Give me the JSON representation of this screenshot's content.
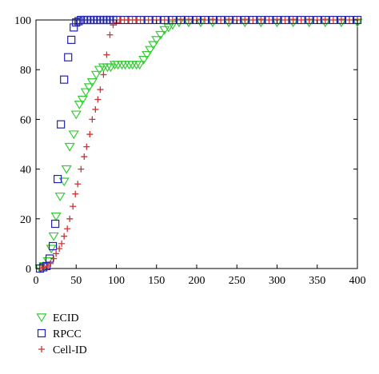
{
  "chart_data": {
    "type": "scatter",
    "title": "",
    "xlabel": "",
    "ylabel": "",
    "xlim": [
      0,
      400
    ],
    "ylim": [
      0,
      100
    ],
    "x_ticks": [
      0,
      50,
      100,
      150,
      200,
      250,
      300,
      350,
      400
    ],
    "y_ticks": [
      0,
      20,
      40,
      60,
      80,
      100
    ],
    "x_tick_labels": [
      "0",
      "50",
      "100",
      "150",
      "200",
      "250",
      "300",
      "350",
      "400"
    ],
    "y_tick_labels": [
      "0",
      "20",
      "40",
      "60",
      "80",
      "100"
    ],
    "grid": false,
    "legend_position": "below-left",
    "series": [
      {
        "name": "ECID",
        "marker": "triangle-down",
        "color": "#33cc33",
        "points": [
          [
            5,
            0
          ],
          [
            10,
            1
          ],
          [
            15,
            3
          ],
          [
            19,
            8
          ],
          [
            22,
            13
          ],
          [
            25,
            21
          ],
          [
            30,
            29
          ],
          [
            35,
            35
          ],
          [
            38,
            40
          ],
          [
            42,
            49
          ],
          [
            47,
            54
          ],
          [
            50,
            62
          ],
          [
            54,
            66
          ],
          [
            58,
            68
          ],
          [
            62,
            71
          ],
          [
            66,
            73
          ],
          [
            70,
            75
          ],
          [
            75,
            78
          ],
          [
            79,
            80
          ],
          [
            84,
            81
          ],
          [
            89,
            81
          ],
          [
            93,
            81
          ],
          [
            98,
            82
          ],
          [
            102,
            82
          ],
          [
            107,
            82
          ],
          [
            111,
            82
          ],
          [
            116,
            82
          ],
          [
            120,
            82
          ],
          [
            125,
            82
          ],
          [
            129,
            82
          ],
          [
            134,
            84
          ],
          [
            138,
            86
          ],
          [
            142,
            88
          ],
          [
            146,
            90
          ],
          [
            150,
            92
          ],
          [
            155,
            94
          ],
          [
            160,
            96
          ],
          [
            165,
            97
          ],
          [
            170,
            98
          ],
          [
            178,
            99
          ],
          [
            190,
            99
          ],
          [
            205,
            99
          ],
          [
            220,
            99
          ],
          [
            240,
            99
          ],
          [
            260,
            99
          ],
          [
            280,
            99
          ],
          [
            300,
            99
          ],
          [
            320,
            99
          ],
          [
            340,
            99
          ],
          [
            360,
            99
          ],
          [
            380,
            99
          ],
          [
            400,
            99
          ]
        ]
      },
      {
        "name": "RPCC",
        "marker": "square",
        "color": "#2222aa",
        "points": [
          [
            5,
            0
          ],
          [
            9,
            0.5
          ],
          [
            13,
            1
          ],
          [
            17,
            4
          ],
          [
            21,
            9
          ],
          [
            24,
            18
          ],
          [
            27,
            36
          ],
          [
            31,
            58
          ],
          [
            35,
            76
          ],
          [
            40,
            85
          ],
          [
            44,
            92
          ],
          [
            47,
            97
          ],
          [
            50,
            99
          ],
          [
            53,
            99.5
          ],
          [
            56,
            100
          ],
          [
            60,
            100
          ],
          [
            64,
            100
          ],
          [
            68,
            100
          ],
          [
            72,
            100
          ],
          [
            76,
            100
          ],
          [
            80,
            100
          ],
          [
            84,
            100
          ],
          [
            88,
            100
          ],
          [
            92,
            100
          ],
          [
            96,
            100
          ],
          [
            100,
            100
          ],
          [
            110,
            100
          ],
          [
            120,
            100
          ],
          [
            130,
            100
          ],
          [
            140,
            100
          ],
          [
            150,
            100
          ],
          [
            160,
            100
          ],
          [
            170,
            100
          ],
          [
            180,
            100
          ],
          [
            190,
            100
          ],
          [
            200,
            100
          ],
          [
            210,
            100
          ],
          [
            220,
            100
          ],
          [
            230,
            100
          ],
          [
            240,
            100
          ],
          [
            250,
            100
          ],
          [
            260,
            100
          ],
          [
            270,
            100
          ],
          [
            280,
            100
          ],
          [
            290,
            100
          ],
          [
            300,
            100
          ],
          [
            310,
            100
          ],
          [
            320,
            100
          ],
          [
            330,
            100
          ],
          [
            340,
            100
          ],
          [
            350,
            100
          ],
          [
            360,
            100
          ],
          [
            370,
            100
          ],
          [
            380,
            100
          ],
          [
            390,
            100
          ],
          [
            400,
            100
          ]
        ]
      },
      {
        "name": "Cell-ID",
        "marker": "plus",
        "color": "#cc3333",
        "points": [
          [
            5,
            0
          ],
          [
            10,
            0.5
          ],
          [
            15,
            1
          ],
          [
            18,
            2
          ],
          [
            22,
            4
          ],
          [
            25,
            6
          ],
          [
            29,
            8
          ],
          [
            32,
            10
          ],
          [
            35,
            13
          ],
          [
            39,
            16
          ],
          [
            42,
            20
          ],
          [
            46,
            25
          ],
          [
            49,
            30
          ],
          [
            52,
            34
          ],
          [
            56,
            40
          ],
          [
            60,
            45
          ],
          [
            63,
            49
          ],
          [
            67,
            54
          ],
          [
            70,
            60
          ],
          [
            74,
            64
          ],
          [
            77,
            68
          ],
          [
            80,
            72
          ],
          [
            84,
            78
          ],
          [
            88,
            86
          ],
          [
            92,
            94
          ],
          [
            96,
            98
          ],
          [
            100,
            99
          ],
          [
            105,
            100
          ],
          [
            110,
            100
          ],
          [
            115,
            100
          ],
          [
            120,
            100
          ],
          [
            125,
            100
          ],
          [
            130,
            100
          ],
          [
            140,
            100
          ],
          [
            150,
            100
          ],
          [
            160,
            100
          ],
          [
            170,
            100
          ],
          [
            180,
            100
          ],
          [
            190,
            100
          ],
          [
            200,
            100
          ],
          [
            210,
            100
          ],
          [
            220,
            100
          ],
          [
            230,
            100
          ],
          [
            240,
            100
          ],
          [
            250,
            100
          ],
          [
            260,
            100
          ],
          [
            270,
            100
          ],
          [
            280,
            100
          ],
          [
            290,
            100
          ],
          [
            300,
            100
          ],
          [
            310,
            100
          ],
          [
            320,
            100
          ],
          [
            330,
            100
          ],
          [
            340,
            100
          ],
          [
            350,
            100
          ],
          [
            360,
            100
          ],
          [
            370,
            100
          ],
          [
            380,
            100
          ],
          [
            390,
            100
          ],
          [
            400,
            100
          ]
        ]
      }
    ]
  }
}
